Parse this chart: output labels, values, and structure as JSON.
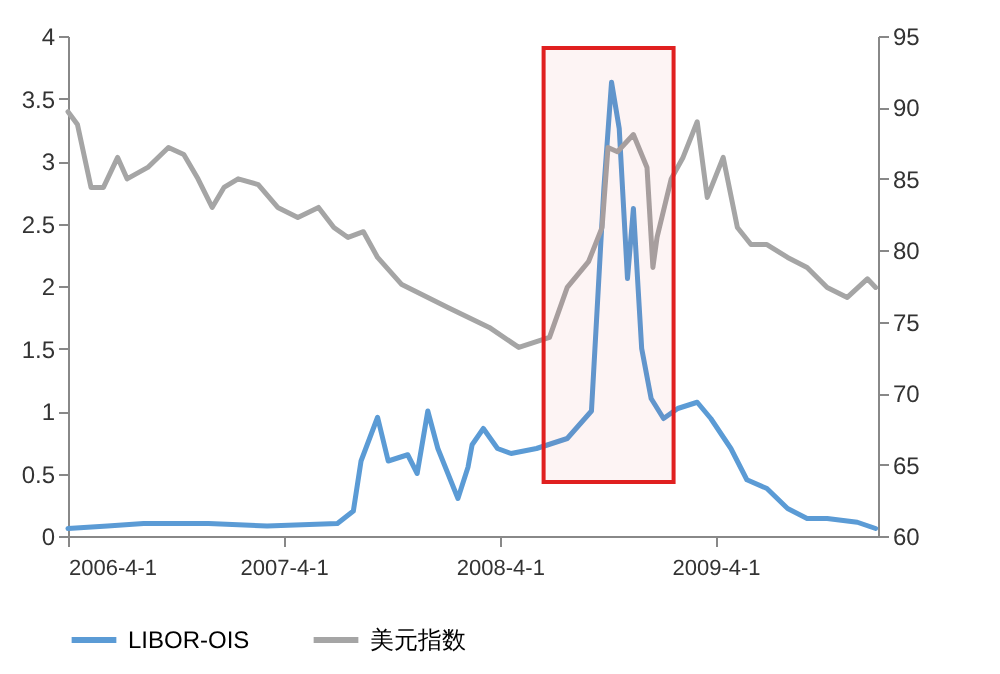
{
  "chart_data": {
    "type": "line",
    "xlim": [
      "2006-04-01",
      "2010-01-01"
    ],
    "xticks": [
      {
        "value": "2006-04-01",
        "label": "2006-4-1"
      },
      {
        "value": "2007-04-01",
        "label": "2007-4-1"
      },
      {
        "value": "2008-04-01",
        "label": "2008-4-1"
      },
      {
        "value": "2009-04-01",
        "label": "2009-4-1"
      }
    ],
    "ylim": [
      0,
      4
    ],
    "yticks": [
      0,
      0.5,
      1,
      1.5,
      2,
      2.5,
      3,
      3.5,
      4
    ],
    "y2lim": [
      60,
      95
    ],
    "y2ticks": [
      60,
      65,
      70,
      75,
      80,
      85,
      90,
      95
    ],
    "legend": "bottom",
    "grid": false,
    "marker": "none",
    "line_style": "solid",
    "bands": [
      {
        "axis": "x",
        "from": "2008-06-14",
        "to": "2009-01-20",
        "label": null,
        "color": "#e02020"
      }
    ],
    "series": [
      {
        "name": "LIBOR-OIS",
        "color": "#5b9bd5",
        "x": [
          "2006-04-01",
          "2006-06-07",
          "2006-08-07",
          "2006-11-25",
          "2007-03-04",
          "2007-07-01",
          "2007-07-28",
          "2007-08-10",
          "2007-09-07",
          "2007-09-25",
          "2007-10-28",
          "2007-11-13",
          "2007-12-01",
          "2007-12-18",
          "2008-01-04",
          "2008-01-21",
          "2008-02-07",
          "2008-02-14",
          "2008-03-04",
          "2008-03-28",
          "2008-04-20",
          "2008-06-02",
          "2008-07-24",
          "2008-09-03",
          "2008-09-24",
          "2008-10-07",
          "2008-10-20",
          "2008-11-03",
          "2008-11-13",
          "2008-11-27",
          "2008-12-13",
          "2009-01-03",
          "2009-01-27",
          "2009-03-01",
          "2009-03-24",
          "2009-04-27",
          "2009-05-24",
          "2009-06-27",
          "2009-08-01",
          "2009-09-03",
          "2009-10-07",
          "2009-11-27",
          "2009-12-28"
        ],
        "values": [
          0.06,
          0.08,
          0.1,
          0.1,
          0.08,
          0.1,
          0.2,
          0.6,
          0.95,
          0.6,
          0.65,
          0.5,
          1.0,
          0.7,
          0.5,
          0.3,
          0.55,
          0.73,
          0.86,
          0.7,
          0.66,
          0.7,
          0.78,
          1.0,
          2.78,
          3.63,
          3.26,
          2.06,
          2.62,
          1.5,
          1.1,
          0.94,
          1.02,
          1.07,
          0.94,
          0.7,
          0.45,
          0.38,
          0.22,
          0.14,
          0.14,
          0.11,
          0.06
        ]
      },
      {
        "name": "美元指数",
        "color": "#a5a5a5",
        "axis": "y2",
        "x": [
          "2006-04-01",
          "2006-04-17",
          "2006-05-10",
          "2006-05-31",
          "2006-06-24",
          "2006-07-10",
          "2006-08-14",
          "2006-09-18",
          "2006-10-14",
          "2006-11-07",
          "2006-12-01",
          "2006-12-21",
          "2007-01-14",
          "2007-02-17",
          "2007-03-22",
          "2007-04-25",
          "2007-05-30",
          "2007-06-25",
          "2007-07-19",
          "2007-08-14",
          "2007-09-07",
          "2007-10-18",
          "2008-01-04",
          "2008-03-14",
          "2008-05-03",
          "2008-06-24",
          "2008-07-24",
          "2008-08-29",
          "2008-09-21",
          "2008-10-01",
          "2008-10-17",
          "2008-11-13",
          "2008-12-06",
          "2008-12-16",
          "2008-12-23",
          "2009-01-16",
          "2009-02-05",
          "2009-03-01",
          "2009-03-18",
          "2009-04-14",
          "2009-05-08",
          "2009-05-31",
          "2009-06-27",
          "2009-08-01",
          "2009-09-03",
          "2009-10-07",
          "2009-11-10",
          "2009-12-14",
          "2009-12-28"
        ],
        "values": [
          89.7,
          88.8,
          84.4,
          84.4,
          86.5,
          85,
          85.8,
          87.2,
          86.7,
          85,
          83,
          84.4,
          85,
          84.6,
          83,
          82.3,
          83,
          81.6,
          80.9,
          81.3,
          79.5,
          77.6,
          76,
          74.6,
          73.2,
          73.9,
          77.4,
          79.2,
          81.6,
          87.2,
          86.9,
          88.1,
          85.8,
          78.8,
          80.9,
          85,
          86.5,
          89,
          83.7,
          86.5,
          81.6,
          80.4,
          80.4,
          79.5,
          78.8,
          77.4,
          76.7,
          78,
          77.4
        ]
      }
    ]
  }
}
